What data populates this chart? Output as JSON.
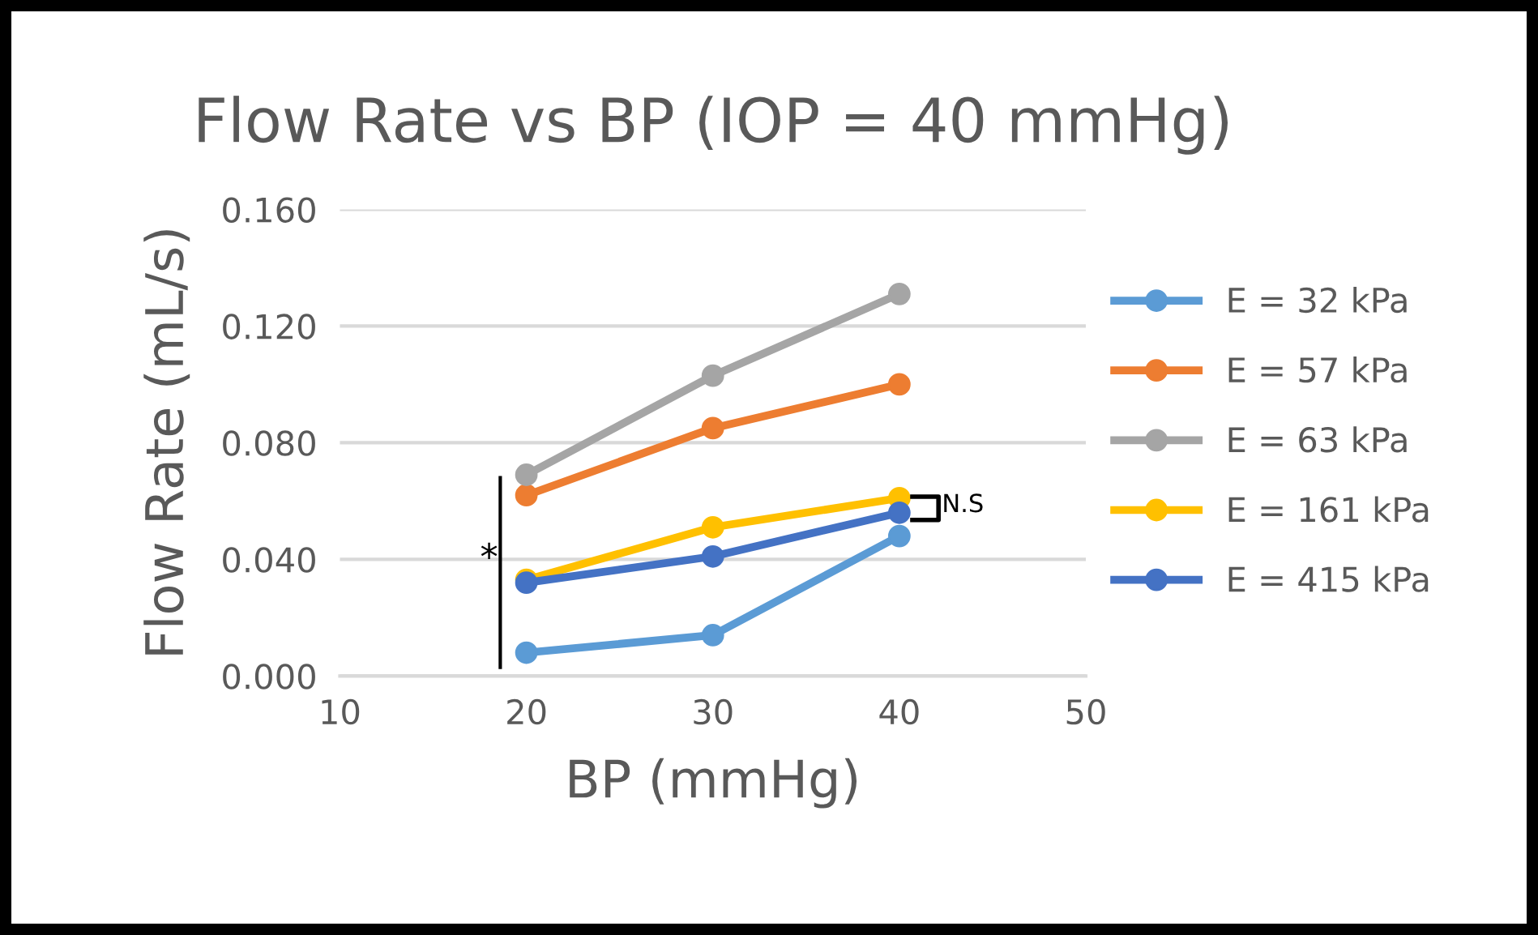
{
  "chart_data": {
    "type": "line",
    "title": "Flow Rate vs BP (IOP = 40 mmHg)",
    "xlabel": "BP (mmHg)",
    "ylabel": "Flow Rate (mL/s)",
    "x": [
      20,
      30,
      40
    ],
    "series": [
      {
        "name": "E = 32 kPa",
        "color": "#5b9bd5",
        "values": [
          0.008,
          0.014,
          0.048
        ]
      },
      {
        "name": "E = 57 kPa",
        "color": "#ed7d31",
        "values": [
          0.062,
          0.085,
          0.1
        ]
      },
      {
        "name": "E = 63 kPa",
        "color": "#a5a5a5",
        "values": [
          0.069,
          0.103,
          0.131
        ]
      },
      {
        "name": "E = 161 kPa",
        "color": "#ffc000",
        "values": [
          0.033,
          0.051,
          0.061
        ]
      },
      {
        "name": "E = 415 kPa",
        "color": "#4472c4",
        "values": [
          0.032,
          0.041,
          0.056
        ]
      }
    ],
    "xlim": [
      10,
      50
    ],
    "xticks": [
      10,
      20,
      30,
      40,
      50
    ],
    "ylim": [
      0,
      0.16
    ],
    "yticks": [
      {
        "value": 0,
        "label": "0.000"
      },
      {
        "value": 0.04,
        "label": "0.040"
      },
      {
        "value": 0.08,
        "label": "0.080"
      },
      {
        "value": 0.12,
        "label": "0.120"
      },
      {
        "value": 0.16,
        "label": "0.160"
      }
    ],
    "annotations": [
      "*",
      "N.S"
    ],
    "grid": "y",
    "legend": "right",
    "marker": "circle",
    "line_style": "solid"
  }
}
